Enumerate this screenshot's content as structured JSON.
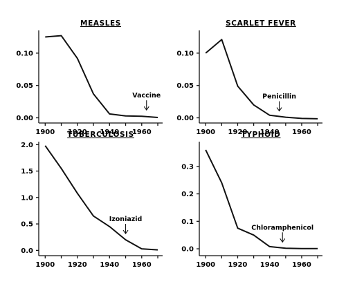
{
  "chart_data": [
    {
      "type": "line",
      "title": "MEASLES",
      "x": [
        1900,
        1910,
        1920,
        1930,
        1940,
        1950,
        1960,
        1970
      ],
      "series": [
        {
          "values": [
            0.125,
            0.127,
            0.092,
            0.037,
            0.006,
            0.003,
            0.0025,
            0.0005
          ]
        }
      ],
      "xlim": [
        1896,
        1973
      ],
      "ylim": [
        -0.008,
        0.133
      ],
      "xticks": [
        "1900",
        "1920",
        "1940",
        "1960"
      ],
      "yticks": [
        "0.00",
        "0.05",
        "0.10"
      ],
      "annotation": {
        "text": "Vaccine",
        "x": 1963
      }
    },
    {
      "type": "line",
      "title": "SCARLET FEVER",
      "x": [
        1900,
        1910,
        1920,
        1930,
        1940,
        1950,
        1960,
        1970
      ],
      "series": [
        {
          "values": [
            0.1,
            0.121,
            0.049,
            0.02,
            0.004,
            0.001,
            -0.001,
            -0.0015
          ]
        }
      ],
      "xlim": [
        1896,
        1973
      ],
      "ylim": [
        -0.008,
        0.133
      ],
      "xticks": [
        "1900",
        "1920",
        "1940",
        "1960"
      ],
      "yticks": [
        "0.00",
        "0.05",
        "0.10"
      ],
      "annotation": {
        "text": "Penicillin",
        "x": 1946
      }
    },
    {
      "type": "line",
      "title": "TUBERCULOSIS",
      "x": [
        1900,
        1910,
        1920,
        1930,
        1940,
        1950,
        1960,
        1970
      ],
      "series": [
        {
          "values": [
            1.98,
            1.55,
            1.08,
            0.65,
            0.45,
            0.2,
            0.03,
            0.01
          ]
        }
      ],
      "xlim": [
        1896,
        1973
      ],
      "ylim": [
        -0.1,
        2.03
      ],
      "xticks": [
        "1900",
        "1920",
        "1940",
        "1960"
      ],
      "yticks": [
        "0.0",
        "0.5",
        "1.0",
        "1.5",
        "2.0"
      ],
      "annotation": {
        "text": "Izoniazid",
        "x": 1950
      }
    },
    {
      "type": "line",
      "title": "TYPHOID",
      "x": [
        1900,
        1910,
        1920,
        1930,
        1940,
        1950,
        1960,
        1970
      ],
      "series": [
        {
          "values": [
            0.36,
            0.24,
            0.075,
            0.05,
            0.008,
            0.002,
            0.001,
            0.001
          ]
        }
      ],
      "xlim": [
        1896,
        1973
      ],
      "ylim": [
        -0.025,
        0.385
      ],
      "xticks": [
        "1900",
        "1920",
        "1940",
        "1960"
      ],
      "yticks": [
        "0.0",
        "0.1",
        "0.2",
        "0.3"
      ],
      "annotation": {
        "text": "Chloramphenicol",
        "x": 1948
      }
    }
  ]
}
